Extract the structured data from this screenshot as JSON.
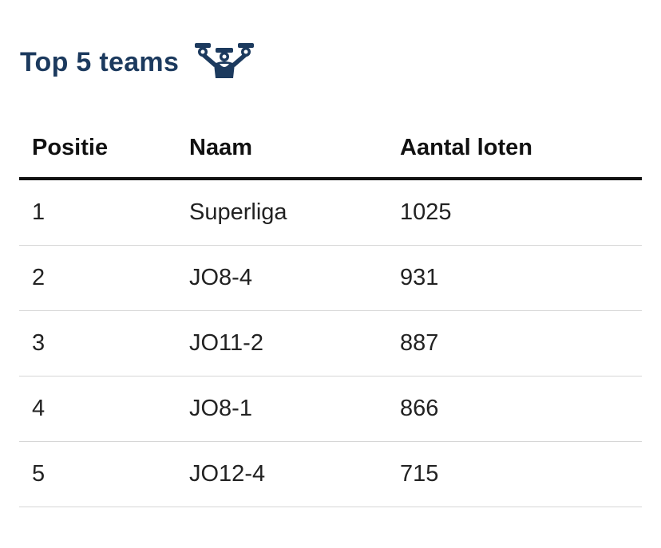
{
  "heading": {
    "title": "Top 5 teams",
    "icon": "trophy-team-icon",
    "color": "#1c3a5e"
  },
  "table": {
    "columns": [
      "Positie",
      "Naam",
      "Aantal loten"
    ],
    "rows": [
      {
        "position": "1",
        "name": "Superliga",
        "count": "1025"
      },
      {
        "position": "2",
        "name": "JO8-4",
        "count": "931"
      },
      {
        "position": "3",
        "name": "JO11-2",
        "count": "887"
      },
      {
        "position": "4",
        "name": "JO8-1",
        "count": "866"
      },
      {
        "position": "5",
        "name": "JO12-4",
        "count": "715"
      }
    ]
  }
}
